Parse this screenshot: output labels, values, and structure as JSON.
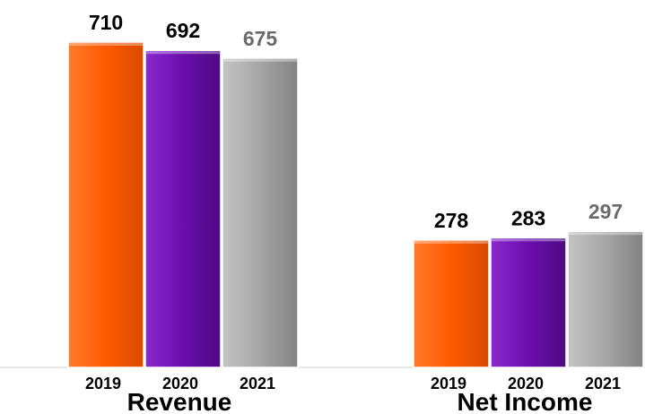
{
  "chart_data": {
    "type": "bar",
    "title": "",
    "xlabel": "",
    "ylabel": "",
    "grid": false,
    "legend": "none",
    "categories": [
      "2019",
      "2020",
      "2021"
    ],
    "groups": [
      {
        "name": "Revenue",
        "values": [
          710,
          692,
          675
        ]
      },
      {
        "name": "Net Income",
        "values": [
          278,
          283,
          297
        ]
      }
    ],
    "value_labels": [
      "710",
      "692",
      "675",
      "278",
      "283",
      "297"
    ],
    "ylim": [
      0,
      730
    ]
  },
  "colors": {
    "2019": "#ff5a00",
    "2020": "#6a0dad",
    "2021": "#a6a6a6",
    "label_2021": "#6b6b6b",
    "label_default": "#000000",
    "axis": "#d0d0d0"
  }
}
